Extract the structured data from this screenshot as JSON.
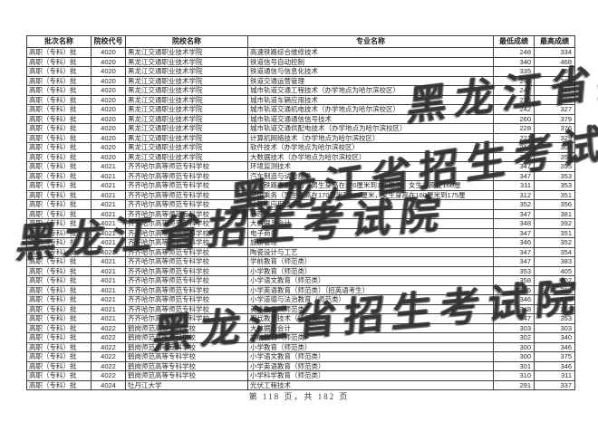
{
  "table": {
    "columns": [
      "批次名称",
      "院校代号",
      "院校名称",
      "专业名称",
      "最低成绩",
      "最高成绩"
    ],
    "rows": [
      [
        "高职（专科）批",
        "4020",
        "黑龙江交通职业技术学院",
        "高速铁路综合维修技术",
        "248",
        "334"
      ],
      [
        "高职（专科）批",
        "4020",
        "黑龙江交通职业技术学院",
        "铁道信号自动控制",
        "340",
        "468"
      ],
      [
        "高职（专科）批",
        "4020",
        "黑龙江交通职业技术学院",
        "铁道通信与信息化技术",
        "335",
        "409"
      ],
      [
        "高职（专科）批",
        "4020",
        "黑龙江交通职业技术学院",
        "铁道交通运营管理",
        "246",
        "365"
      ],
      [
        "高职（专科）批",
        "4020",
        "黑龙江交通职业技术学院",
        "城市轨道交通工程技术（办学地点为哈尔滨校区）",
        "247",
        "317"
      ],
      [
        "高职（专科）批",
        "4020",
        "黑龙江交通职业技术学院",
        "城市轨道车辆应用技术",
        "219",
        "289"
      ],
      [
        "高职（专科）批",
        "4020",
        "黑龙江交通职业技术学院",
        "城市轨道交通机电技术（办学地点为哈尔滨校区）",
        "242",
        "327"
      ],
      [
        "高职（专科）批",
        "4020",
        "黑龙江交通职业技术学院",
        "城市轨道交通通信信号技术",
        "260",
        "379"
      ],
      [
        "高职（专科）批",
        "4020",
        "黑龙江交通职业技术学院",
        "城市轨道交通供配电技术（办学地点为哈尔滨校区）",
        "228",
        "376"
      ],
      [
        "高职（专科）批",
        "4020",
        "黑龙江交通职业技术学院",
        "计算机网络技术（办学地点为哈尔滨校区）",
        "221",
        "329"
      ],
      [
        "高职（专科）批",
        "4020",
        "黑龙江交通职业技术学院",
        "软件技术（办学地点为哈尔滨校区）",
        "213",
        "305"
      ],
      [
        "高职（专科）批",
        "4020",
        "黑龙江交通职业技术学院",
        "大数据技术（办学地点为哈尔滨校区）",
        "222",
        "351"
      ],
      [
        "高职（专科）批",
        "4021",
        "齐齐哈尔高等师范专科学校",
        "环境监测技术",
        "347",
        "355"
      ],
      [
        "高职（专科）批",
        "4021",
        "齐齐哈尔高等师范专科学校",
        "汽车制造与试验技术",
        "347",
        "353"
      ],
      [
        "高职（专科）批",
        "4021",
        "齐齐哈尔高等师范专科学校",
        "高速铁路客运服务（男生身高在170厘米到185厘米，女生身高在160厘",
        "311",
        "353"
      ],
      [
        "高职（专科）批",
        "4021",
        "齐齐哈尔高等师范专科学校",
        "空中乘务（男生身高在170厘米到185厘米，女生身高在160厘米到175厘",
        "312",
        "351"
      ],
      [
        "高职（专科）批",
        "4021",
        "齐齐哈尔高等师范专科学校",
        "计算机应用技术",
        "352",
        "356"
      ],
      [
        "高职（专科）批",
        "4021",
        "齐齐哈尔高等师范专科学校",
        "心理咨询",
        "347",
        "381"
      ],
      [
        "高职（专科）批",
        "4021",
        "齐齐哈尔高等师范专科学校",
        "大数据与会计",
        "348",
        "392"
      ],
      [
        "高职（专科）批",
        "4021",
        "齐齐哈尔高等师范专科学校",
        "电子商务",
        "347",
        "351"
      ],
      [
        "高职（专科）批",
        "4021",
        "齐齐哈尔高等师范专科学校",
        "旅游管理",
        "346",
        "352"
      ],
      [
        "高职（专科）批",
        "4021",
        "齐齐哈尔高等师范专科学校",
        "陶瓷设计与工艺",
        "347",
        "354"
      ],
      [
        "高职（专科）批",
        "4021",
        "齐齐哈尔高等师范专科学校",
        "学前教育（师范类）",
        "347",
        "383"
      ],
      [
        "高职（专科）批",
        "4021",
        "齐齐哈尔高等师范专科学校",
        "小学教育（师范类）",
        "353",
        "405"
      ],
      [
        "高职（专科）批",
        "4021",
        "齐齐哈尔高等师范专科学校",
        "小学语文教育（师范类）",
        "358",
        "402"
      ],
      [
        "高职（专科）批",
        "4021",
        "齐齐哈尔高等师范专科学校",
        "小学英语教育（师范类）（招英语考生）",
        "345",
        "385"
      ],
      [
        "高职（专科）批",
        "4021",
        "齐齐哈尔高等师范专科学校",
        "小学道德与法治教育（师范类）",
        "346",
        "376"
      ],
      [
        "高职（专科）批",
        "4021",
        "齐齐哈尔高等师范专科学校",
        "美术教育（师范类）",
        "348",
        "353"
      ],
      [
        "高职（专科）批",
        "4021",
        "齐齐哈尔高等师范专科学校",
        "现代教育技术（师范类）",
        "347",
        "353"
      ],
      [
        "高职（专科）批",
        "4022",
        "鹤岗师范高等专科学校",
        "大数据与会计",
        "303",
        "303"
      ],
      [
        "高职（专科）批",
        "4022",
        "鹤岗师范高等专科学校",
        "学前教育（师范类）",
        "302",
        "340"
      ],
      [
        "高职（专科）批",
        "4022",
        "鹤岗师范高等专科学校",
        "小学教育（师范类）",
        "300",
        "346"
      ],
      [
        "高职（专科）批",
        "4022",
        "鹤岗师范高等专科学校",
        "小学语文教育（师范类）",
        "300",
        "375"
      ],
      [
        "高职（专科）批",
        "4022",
        "鹤岗师范高等专科学校",
        "小学英语教育（师范类）",
        "301",
        "346"
      ],
      [
        "高职（专科）批",
        "4022",
        "鹤岗师范高等专科学校",
        "小学科学教育（师范类）",
        "310",
        "311"
      ],
      [
        "高职（专科）批",
        "4024",
        "牡丹江大学",
        "光伏工程技术",
        "291",
        "337"
      ]
    ]
  },
  "watermark": {
    "text": "黑龙江省招生考试院"
  },
  "footer": {
    "page_info": "第 118 页，共 182 页"
  },
  "colors": {
    "border": "#3d3d3d",
    "text": "#2a2a2a",
    "watermark": "#2a2a2a"
  }
}
